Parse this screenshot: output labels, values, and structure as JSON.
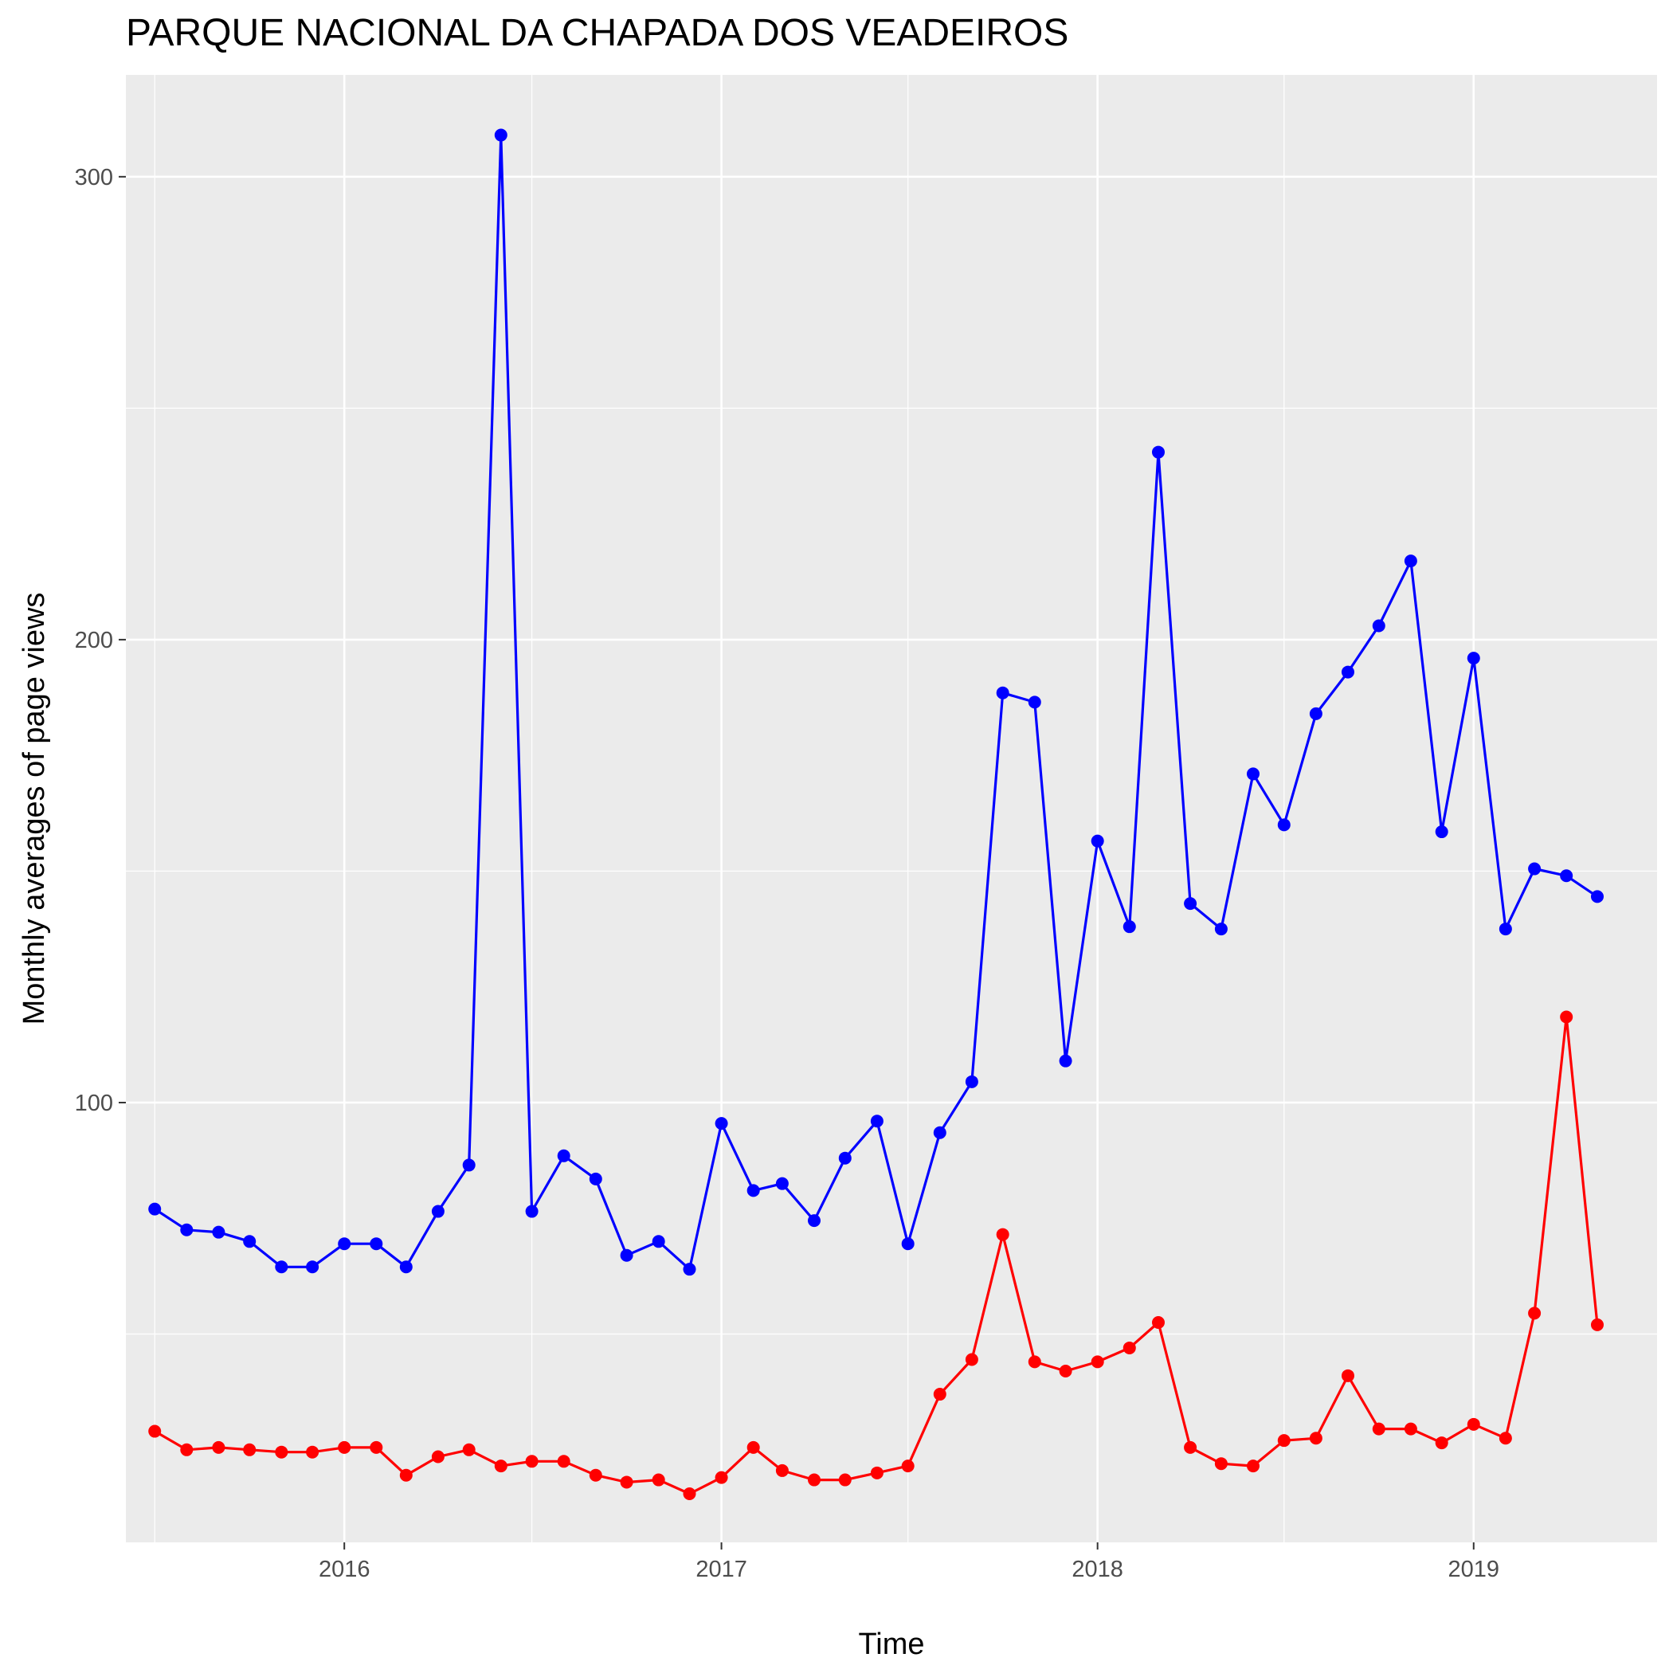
{
  "chart_data": {
    "type": "line",
    "title": "PARQUE NACIONAL DA CHAPADA DOS VEADEIROS",
    "xlabel": "Time",
    "ylabel": "Monthly averages of page views",
    "x_ticks": [
      "2016",
      "2017",
      "2018",
      "2019"
    ],
    "y_ticks": [
      100,
      200,
      300
    ],
    "ylim": [
      5,
      322
    ],
    "xlim": [
      "2015-06-03",
      "2019-06-28"
    ],
    "grid": true,
    "background": "#EBEBEB",
    "x": [
      "2015-07-01",
      "2015-08-01",
      "2015-09-01",
      "2015-10-01",
      "2015-11-01",
      "2015-12-01",
      "2016-01-01",
      "2016-02-01",
      "2016-03-01",
      "2016-04-01",
      "2016-05-01",
      "2016-06-01",
      "2016-07-01",
      "2016-08-01",
      "2016-09-01",
      "2016-10-01",
      "2016-11-01",
      "2016-12-01",
      "2017-01-01",
      "2017-02-01",
      "2017-03-01",
      "2017-04-01",
      "2017-05-01",
      "2017-06-01",
      "2017-07-01",
      "2017-08-01",
      "2017-09-01",
      "2017-10-01",
      "2017-11-01",
      "2017-12-01",
      "2018-01-01",
      "2018-02-01",
      "2018-03-01",
      "2018-04-01",
      "2018-05-01",
      "2018-06-01",
      "2018-07-01",
      "2018-08-01",
      "2018-09-01",
      "2018-10-01",
      "2018-11-01",
      "2018-12-01",
      "2019-01-01",
      "2019-02-01",
      "2019-03-01",
      "2019-04-01",
      "2019-05-01"
    ],
    "series": [
      {
        "color": "#0000FF",
        "values": [
          77,
          72.5,
          72,
          70,
          64.5,
          64.5,
          69.5,
          69.5,
          64.5,
          76.5,
          86.5,
          309,
          76.5,
          88.5,
          83.5,
          67,
          70,
          64,
          95.5,
          81,
          82.5,
          74.5,
          88,
          96,
          69.5,
          93.5,
          104.5,
          188.5,
          186.5,
          109,
          156.5,
          138,
          240.5,
          143,
          137.5,
          171,
          160,
          184,
          193,
          203,
          217,
          158.5,
          196,
          137.5,
          150.5,
          149,
          144.5
        ]
      },
      {
        "color": "#FF0000",
        "values": [
          29,
          25,
          25.5,
          25,
          24.5,
          24.5,
          25.5,
          25.5,
          19.5,
          23.5,
          25,
          21.5,
          22.5,
          22.5,
          19.5,
          18,
          18.5,
          15.5,
          19,
          25.5,
          20.5,
          18.5,
          18.5,
          20,
          21.5,
          37,
          44.5,
          71.5,
          44,
          42,
          44,
          47,
          52.5,
          25.5,
          22,
          21.5,
          27,
          27.5,
          41,
          29.5,
          29.5,
          26.5,
          30.5,
          27.5,
          54.5,
          118.5,
          52
        ]
      }
    ]
  }
}
